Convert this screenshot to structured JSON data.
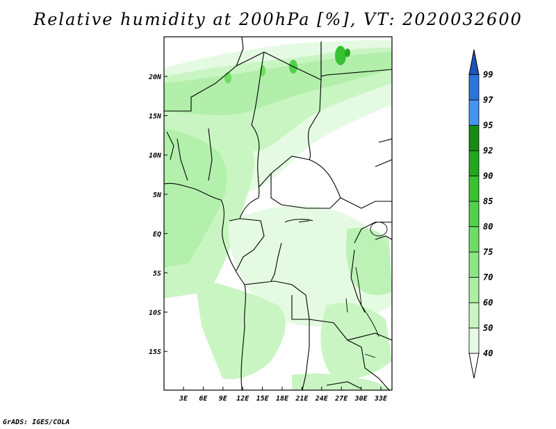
{
  "title": "Relative humidity at 200hPa [%], VT: 2020032600",
  "credit": "GrADS: IGES/COLA",
  "map": {
    "lat_labels": [
      "20N",
      "15N",
      "10N",
      "5N",
      "EQ",
      "5S",
      "10S",
      "15S"
    ],
    "lon_labels": [
      "3E",
      "6E",
      "9E",
      "12E",
      "15E",
      "18E",
      "21E",
      "24E",
      "27E",
      "30E",
      "33E"
    ],
    "lon_range": [
      0,
      35
    ],
    "lat_range": [
      -20,
      25
    ],
    "projection": "latlon",
    "coastline_color": "#000000",
    "field": "relative humidity",
    "units": "%"
  },
  "colorbar": {
    "levels": [
      "40",
      "50",
      "60",
      "70",
      "75",
      "80",
      "85",
      "90",
      "92",
      "95",
      "97",
      "99"
    ],
    "colors": [
      "#ffffff",
      "#e5fae2",
      "#c9f5c3",
      "#abeea4",
      "#8ee586",
      "#6fdc66",
      "#52d14b",
      "#38c232",
      "#22a81e",
      "#178b14",
      "#4595ee",
      "#2e74d8",
      "#1b54b8"
    ],
    "extend": "both"
  }
}
